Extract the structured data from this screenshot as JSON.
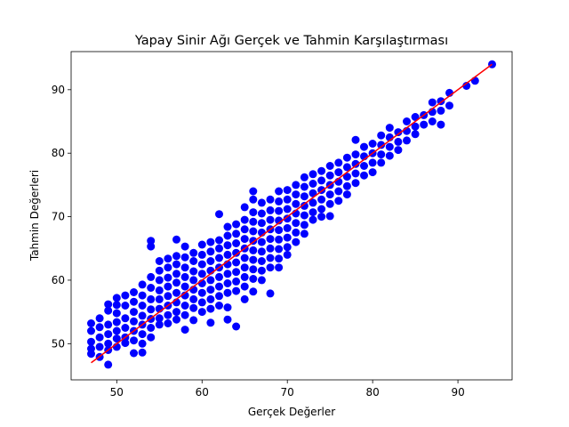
{
  "chart_data": {
    "type": "scatter",
    "title": "Yapay Sinir Ağı Gerçek ve Tahmin Karşılaştırması",
    "xlabel": "Gerçek Değerler",
    "ylabel": "Tahmin Değerleri",
    "xlim": [
      44.65,
      96.35
    ],
    "ylim": [
      44.3,
      96.0
    ],
    "xticks": [
      50,
      60,
      70,
      80,
      90
    ],
    "yticks": [
      50,
      60,
      70,
      80,
      90
    ],
    "grid": false,
    "point_color": "#0000ff",
    "line_color": "#ff0000",
    "reference_line": {
      "x": [
        47,
        94
      ],
      "y": [
        47,
        94
      ]
    },
    "points": [
      [
        47,
        53.2
      ],
      [
        47,
        52
      ],
      [
        47,
        50.3
      ],
      [
        47,
        49.2
      ],
      [
        47,
        48.4
      ],
      [
        48,
        54
      ],
      [
        48,
        52.6
      ],
      [
        48,
        51
      ],
      [
        48,
        49.5
      ],
      [
        48,
        47.9
      ],
      [
        49,
        56.2
      ],
      [
        49,
        55.2
      ],
      [
        49,
        53
      ],
      [
        49,
        51.5
      ],
      [
        49,
        50
      ],
      [
        49,
        49
      ],
      [
        49,
        46.7
      ],
      [
        50,
        57.2
      ],
      [
        50,
        56.1
      ],
      [
        50,
        54.8
      ],
      [
        50,
        53.4
      ],
      [
        50,
        52
      ],
      [
        50,
        50.8
      ],
      [
        50,
        49.5
      ],
      [
        51,
        57.6
      ],
      [
        51,
        56
      ],
      [
        51,
        54
      ],
      [
        51,
        52.5
      ],
      [
        51,
        51
      ],
      [
        51,
        50.1
      ],
      [
        52,
        58.1
      ],
      [
        52,
        56.6
      ],
      [
        52,
        55
      ],
      [
        52,
        53.5
      ],
      [
        52,
        52
      ],
      [
        52,
        50.5
      ],
      [
        52,
        48.5
      ],
      [
        53,
        59.3
      ],
      [
        53,
        57.6
      ],
      [
        53,
        56
      ],
      [
        53,
        54.4
      ],
      [
        53,
        53
      ],
      [
        53,
        51.5
      ],
      [
        53,
        50
      ],
      [
        53,
        48.6
      ],
      [
        54,
        66.2
      ],
      [
        54,
        65.3
      ],
      [
        54,
        60.5
      ],
      [
        54,
        58.8
      ],
      [
        54,
        57
      ],
      [
        54,
        55.4
      ],
      [
        54,
        53.9
      ],
      [
        54,
        52.5
      ],
      [
        54,
        51
      ],
      [
        55,
        63
      ],
      [
        55,
        61.5
      ],
      [
        55,
        60
      ],
      [
        55,
        58.4
      ],
      [
        55,
        57
      ],
      [
        55,
        55.5
      ],
      [
        55,
        54
      ],
      [
        55,
        53
      ],
      [
        56,
        63.4
      ],
      [
        56,
        62
      ],
      [
        56,
        60.4
      ],
      [
        56,
        59
      ],
      [
        56,
        57.5
      ],
      [
        56,
        56
      ],
      [
        56,
        54.5
      ],
      [
        56,
        53.2
      ],
      [
        57,
        66.4
      ],
      [
        57,
        63.8
      ],
      [
        57,
        62.5
      ],
      [
        57,
        61
      ],
      [
        57,
        59.6
      ],
      [
        57,
        58
      ],
      [
        57,
        56.5
      ],
      [
        57,
        55
      ],
      [
        57,
        53.8
      ],
      [
        58,
        65.3
      ],
      [
        58,
        63.6
      ],
      [
        58,
        62
      ],
      [
        58,
        60.5
      ],
      [
        58,
        59
      ],
      [
        58,
        57.6
      ],
      [
        58,
        56
      ],
      [
        58,
        54.5
      ],
      [
        58,
        52.2
      ],
      [
        59,
        64.3
      ],
      [
        59,
        63
      ],
      [
        59,
        61.4
      ],
      [
        59,
        60
      ],
      [
        59,
        58.5
      ],
      [
        59,
        57
      ],
      [
        59,
        55.6
      ],
      [
        59,
        53.7
      ],
      [
        60,
        65.6
      ],
      [
        60,
        64
      ],
      [
        60,
        62.5
      ],
      [
        60,
        61
      ],
      [
        60,
        59.5
      ],
      [
        60,
        58
      ],
      [
        60,
        56.5
      ],
      [
        60,
        55
      ],
      [
        61,
        66
      ],
      [
        61,
        64.5
      ],
      [
        61,
        63
      ],
      [
        61,
        61.5
      ],
      [
        61,
        60
      ],
      [
        61,
        58.5
      ],
      [
        61,
        57
      ],
      [
        61,
        55.5
      ],
      [
        61,
        53.3
      ],
      [
        62,
        70.4
      ],
      [
        62,
        66.3
      ],
      [
        62,
        65
      ],
      [
        62,
        63.5
      ],
      [
        62,
        62
      ],
      [
        62,
        60.5
      ],
      [
        62,
        59
      ],
      [
        62,
        57.5
      ],
      [
        62,
        56
      ],
      [
        63,
        68.4
      ],
      [
        63,
        67
      ],
      [
        63,
        65.5
      ],
      [
        63,
        64
      ],
      [
        63,
        62.5
      ],
      [
        63,
        61
      ],
      [
        63,
        59.5
      ],
      [
        63,
        58
      ],
      [
        63,
        55.7
      ],
      [
        63,
        53.8
      ],
      [
        64,
        68.8
      ],
      [
        64,
        67.3
      ],
      [
        64,
        65.8
      ],
      [
        64,
        64.3
      ],
      [
        64,
        62.8
      ],
      [
        64,
        61.3
      ],
      [
        64,
        59.8
      ],
      [
        64,
        58.3
      ],
      [
        64,
        52.7
      ],
      [
        65,
        71.5
      ],
      [
        65,
        69.5
      ],
      [
        65,
        68
      ],
      [
        65,
        66.5
      ],
      [
        65,
        65
      ],
      [
        65,
        63.5
      ],
      [
        65,
        62
      ],
      [
        65,
        60.5
      ],
      [
        65,
        59
      ],
      [
        65,
        57
      ],
      [
        66,
        74
      ],
      [
        66,
        72.7
      ],
      [
        66,
        70.7
      ],
      [
        66,
        69.2
      ],
      [
        66,
        67.7
      ],
      [
        66,
        66.2
      ],
      [
        66,
        64.7
      ],
      [
        66,
        63.2
      ],
      [
        66,
        61.7
      ],
      [
        66,
        60.2
      ],
      [
        66,
        58.2
      ],
      [
        67,
        72.2
      ],
      [
        67,
        70.5
      ],
      [
        67,
        69
      ],
      [
        67,
        67.5
      ],
      [
        67,
        66
      ],
      [
        67,
        64.5
      ],
      [
        67,
        63
      ],
      [
        67,
        61.5
      ],
      [
        67,
        60
      ],
      [
        68,
        72.7
      ],
      [
        68,
        71
      ],
      [
        68,
        69.5
      ],
      [
        68,
        68
      ],
      [
        68,
        66.5
      ],
      [
        68,
        65
      ],
      [
        68,
        63.5
      ],
      [
        68,
        62
      ],
      [
        68,
        57.9
      ],
      [
        69,
        74
      ],
      [
        69,
        72.4
      ],
      [
        69,
        70.9
      ],
      [
        69,
        69.4
      ],
      [
        69,
        67.9
      ],
      [
        69,
        66.4
      ],
      [
        69,
        64.9
      ],
      [
        69,
        63.4
      ],
      [
        69,
        62
      ],
      [
        70,
        74.2
      ],
      [
        70,
        72.7
      ],
      [
        70,
        71.2
      ],
      [
        70,
        69.7
      ],
      [
        70,
        68.2
      ],
      [
        70,
        66.7
      ],
      [
        70,
        65.2
      ],
      [
        70,
        64
      ],
      [
        71,
        75
      ],
      [
        71,
        73.5
      ],
      [
        71,
        72
      ],
      [
        71,
        70.5
      ],
      [
        71,
        69
      ],
      [
        71,
        67.5
      ],
      [
        71,
        66
      ],
      [
        72,
        76.2
      ],
      [
        72,
        74.7
      ],
      [
        72,
        73.2
      ],
      [
        72,
        71.7
      ],
      [
        72,
        70.2
      ],
      [
        72,
        68.7
      ],
      [
        72,
        67.3
      ],
      [
        73,
        76.7
      ],
      [
        73,
        75.2
      ],
      [
        73,
        73.7
      ],
      [
        73,
        72.2
      ],
      [
        73,
        70.7
      ],
      [
        73,
        69.5
      ],
      [
        74,
        77.2
      ],
      [
        74,
        75.7
      ],
      [
        74,
        74.2
      ],
      [
        74,
        72.7
      ],
      [
        74,
        71.2
      ],
      [
        74,
        70
      ],
      [
        75,
        78
      ],
      [
        75,
        76.5
      ],
      [
        75,
        75
      ],
      [
        75,
        73.5
      ],
      [
        75,
        72
      ],
      [
        75,
        70.1
      ],
      [
        76,
        78.5
      ],
      [
        76,
        77
      ],
      [
        76,
        75.5
      ],
      [
        76,
        74
      ],
      [
        76,
        72.5
      ],
      [
        77,
        79.3
      ],
      [
        77,
        77.8
      ],
      [
        77,
        76.3
      ],
      [
        77,
        74.8
      ],
      [
        77,
        73.5
      ],
      [
        78,
        82.1
      ],
      [
        78,
        79.8
      ],
      [
        78,
        78.3
      ],
      [
        78,
        76.8
      ],
      [
        78,
        75.3
      ],
      [
        79,
        81
      ],
      [
        79,
        79.5
      ],
      [
        79,
        78
      ],
      [
        79,
        76.5
      ],
      [
        80,
        81.5
      ],
      [
        80,
        80
      ],
      [
        80,
        78.5
      ],
      [
        80,
        77
      ],
      [
        81,
        82.8
      ],
      [
        81,
        81.3
      ],
      [
        81,
        79.8
      ],
      [
        81,
        78.5
      ],
      [
        82,
        84
      ],
      [
        82,
        82.5
      ],
      [
        82,
        81
      ],
      [
        82,
        79.6
      ],
      [
        83,
        83.3
      ],
      [
        83,
        81.8
      ],
      [
        83,
        80.5
      ],
      [
        84,
        85
      ],
      [
        84,
        83.5
      ],
      [
        84,
        82
      ],
      [
        85,
        85.7
      ],
      [
        85,
        84.2
      ],
      [
        85,
        83
      ],
      [
        86,
        86
      ],
      [
        86,
        84.5
      ],
      [
        87,
        88
      ],
      [
        87,
        86.5
      ],
      [
        87,
        85
      ],
      [
        88,
        88.2
      ],
      [
        88,
        86.7
      ],
      [
        88,
        84.5
      ],
      [
        89,
        89.5
      ],
      [
        89,
        87.5
      ],
      [
        91,
        90.6
      ],
      [
        92,
        91.4
      ],
      [
        94,
        94
      ]
    ]
  }
}
